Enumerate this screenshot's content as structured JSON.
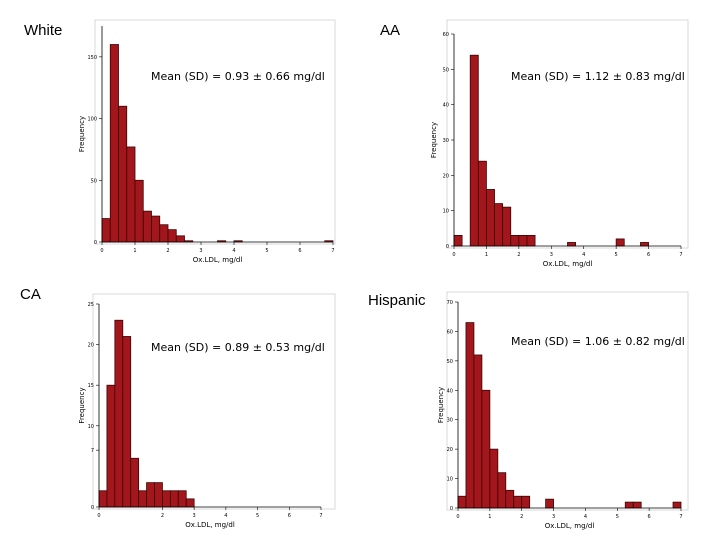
{
  "colors": {
    "bar_fill": "#a3171c",
    "bar_stroke": "#3a0406",
    "axis": "#000000",
    "frame": "#d9d9d9"
  },
  "labels": {
    "white": "White",
    "aa": "AA",
    "ca": "CA",
    "hispanic": "Hispanic"
  },
  "chart_data": [
    {
      "type": "bar",
      "group": "White",
      "mean_text": "Mean (SD) = 0.93 ± 0.66 mg/dl",
      "xlabel": "Ox.LDL, mg/dl",
      "ylabel": "Frequency",
      "bin_width": 0.25,
      "bin_starts": [
        0,
        0.25,
        0.5,
        0.75,
        1.0,
        1.25,
        1.5,
        1.75,
        2.0,
        2.25,
        2.5,
        2.75,
        3.0,
        3.25,
        3.5,
        3.75,
        4.0,
        4.25,
        4.5,
        4.75,
        5.0,
        5.25,
        5.5,
        5.75,
        6.0,
        6.25,
        6.5,
        6.75
      ],
      "values": [
        19,
        160,
        110,
        77,
        50,
        25,
        21,
        14,
        10,
        5,
        1,
        0,
        0,
        0,
        1,
        0,
        1,
        0,
        0,
        0,
        0,
        0,
        0,
        0,
        0,
        0,
        0,
        1
      ],
      "xlim": [
        0,
        7
      ],
      "ylim": [
        0,
        175
      ],
      "xticks": [
        0,
        1,
        2,
        3,
        4,
        5,
        6,
        7
      ],
      "yticks": [
        0,
        50,
        100,
        150
      ]
    },
    {
      "type": "bar",
      "group": "AA",
      "mean_text": "Mean (SD) = 1.12 ± 0.83 mg/dl",
      "xlabel": "Ox.LDL, mg/dl",
      "ylabel": "Frequency",
      "bin_width": 0.25,
      "bin_starts": [
        0,
        0.25,
        0.5,
        0.75,
        1.0,
        1.25,
        1.5,
        1.75,
        2.0,
        2.25,
        2.5,
        2.75,
        3.0,
        3.25,
        3.5,
        3.75,
        4.0,
        4.25,
        4.5,
        4.75,
        5.0,
        5.25,
        5.5,
        5.75,
        6.0,
        6.25,
        6.5,
        6.75
      ],
      "values": [
        3,
        0,
        54,
        24,
        16,
        12,
        11,
        3,
        3,
        3,
        0,
        0,
        0,
        0,
        1,
        0,
        0,
        0,
        0,
        0,
        2,
        0,
        0,
        1,
        0,
        0,
        0,
        0
      ],
      "xlim": [
        0,
        7
      ],
      "ylim": [
        0,
        60
      ],
      "xticks": [
        0,
        1,
        2,
        3,
        4,
        5,
        6,
        7
      ],
      "yticks": [
        0,
        10,
        20,
        30,
        40,
        50,
        60
      ]
    },
    {
      "type": "bar",
      "group": "CA",
      "mean_text": "Mean (SD) = 0.89 ± 0.53 mg/dl",
      "xlabel": "Ox.LDL, mg/dl",
      "ylabel": "Frequency",
      "bin_width": 0.25,
      "bin_starts": [
        0,
        0.25,
        0.5,
        0.75,
        1.0,
        1.25,
        1.5,
        1.75,
        2.0,
        2.25,
        2.5,
        2.75,
        3.0,
        3.25,
        3.5,
        3.75,
        4.0,
        4.25,
        4.5,
        4.75,
        5.0,
        5.25,
        5.5,
        5.75,
        6.0,
        6.25,
        6.5,
        6.75
      ],
      "values": [
        2,
        15,
        23,
        21,
        6,
        2,
        3,
        3,
        2,
        2,
        2,
        1,
        0,
        0,
        0,
        0,
        0,
        0,
        0,
        0,
        0,
        0,
        0,
        0,
        0,
        0,
        0,
        0
      ],
      "xlim": [
        0,
        7
      ],
      "ylim": [
        0,
        25
      ],
      "xticks": [
        0,
        2,
        3,
        4,
        5,
        6,
        7
      ],
      "yticks": [
        0,
        7,
        10,
        15,
        20,
        25
      ]
    },
    {
      "type": "bar",
      "group": "Hispanic",
      "mean_text": "Mean (SD) = 1.06 ± 0.82 mg/dl",
      "xlabel": "Ox.LDL, mg/dl",
      "ylabel": "Frequency",
      "bin_width": 0.25,
      "bin_starts": [
        0,
        0.25,
        0.5,
        0.75,
        1.0,
        1.25,
        1.5,
        1.75,
        2.0,
        2.25,
        2.5,
        2.75,
        3.0,
        3.25,
        3.5,
        3.75,
        4.0,
        4.25,
        4.5,
        4.75,
        5.0,
        5.25,
        5.5,
        5.75,
        6.0,
        6.25,
        6.5,
        6.75
      ],
      "values": [
        4,
        63,
        52,
        40,
        20,
        12,
        6,
        4,
        4,
        0,
        0,
        3,
        0,
        0,
        0,
        0,
        0,
        0,
        0,
        0,
        0,
        2,
        2,
        0,
        0,
        0,
        0,
        2
      ],
      "xlim": [
        0,
        7
      ],
      "ylim": [
        0,
        70
      ],
      "xticks": [
        0,
        1,
        2,
        3,
        4,
        5,
        6,
        7
      ],
      "yticks": [
        0,
        10,
        20,
        30,
        40,
        50,
        60,
        70
      ]
    }
  ]
}
